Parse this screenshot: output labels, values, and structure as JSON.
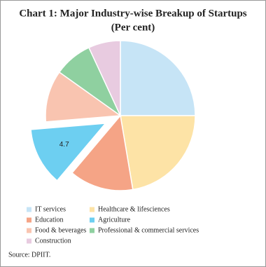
{
  "chart_data": {
    "type": "pie",
    "title": "Chart 1: Major Industry-wise Breakup of Startups",
    "subtitle": "(Per cent)",
    "categories": [
      "IT services",
      "Healthcare & lifesciences",
      "Education",
      "Agriculture",
      "Food & beverages",
      "Professional & commercial services",
      "Construction"
    ],
    "values": [
      9.4,
      8.4,
      5.2,
      4.7,
      4.2,
      3.1,
      2.6
    ],
    "colors": [
      "#c6e4f6",
      "#fde3a6",
      "#f5a486",
      "#6dcff1",
      "#f9c4b0",
      "#8fd0a0",
      "#e8cbe0"
    ],
    "exploded_index": 3,
    "source": "Source: DPIIT."
  }
}
